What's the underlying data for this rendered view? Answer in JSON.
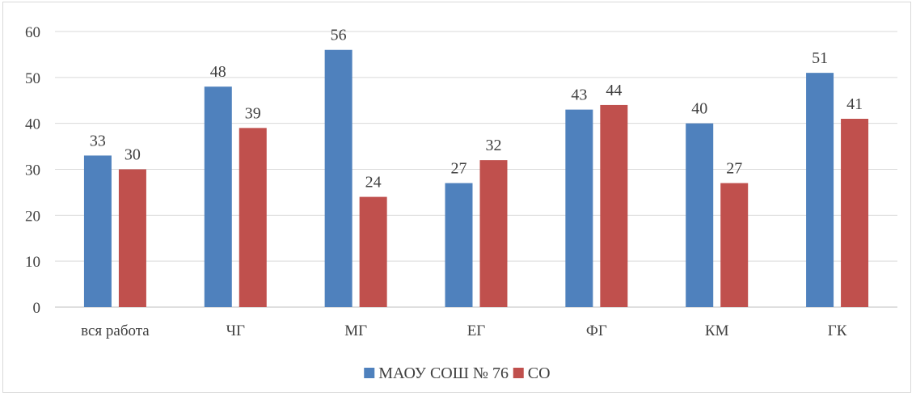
{
  "chart_data": {
    "type": "bar",
    "categories": [
      "вся работа",
      "ЧГ",
      "МГ",
      "ЕГ",
      "ФГ",
      "КМ",
      "ГК"
    ],
    "series": [
      {
        "name": "МАОУ СОШ № 76",
        "color": "#4F81BD",
        "values": [
          33,
          48,
          56,
          27,
          43,
          40,
          51
        ]
      },
      {
        "name": "СО",
        "color": "#C0504D",
        "values": [
          30,
          39,
          24,
          32,
          44,
          27,
          41
        ]
      }
    ],
    "y_ticks": [
      "0",
      "10",
      "20",
      "30",
      "40",
      "50",
      "60"
    ],
    "ylim": [
      0,
      60
    ],
    "grid": true,
    "legend_position": "bottom",
    "data_labels": true
  }
}
